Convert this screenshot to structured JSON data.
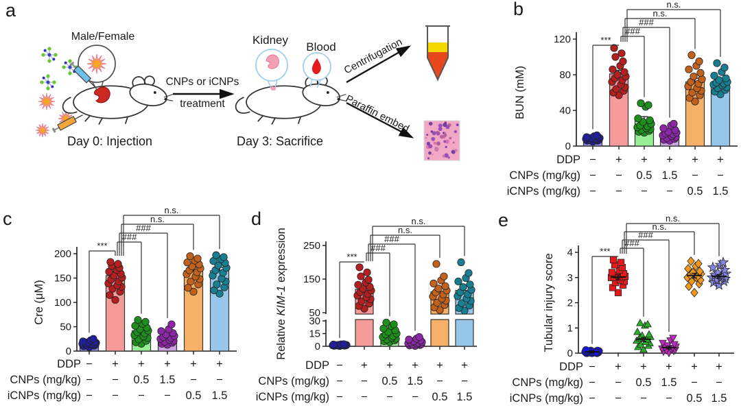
{
  "panel_labels": {
    "a": "a",
    "b": "b",
    "c": "c",
    "d": "d",
    "e": "e"
  },
  "panel_a": {
    "mouse_label": "Male/Female",
    "arrow_line1": "CNPs or iCNPs",
    "arrow_line2": "treatment",
    "day0_label": "Day 0: Injection",
    "kidney_label": "Kidney",
    "blood_label": "Blood",
    "day3_label": "Day 3: Sacrifice",
    "centrifugation_label": "Centrifugation",
    "paraffin_label": "Paraffin embed",
    "kidney_blood_label_color": "#c2512b"
  },
  "chart_data": [
    {
      "id": "b",
      "type": "bar-scatter",
      "ylabel": "BUN (mM)",
      "ylim": [
        0,
        120
      ],
      "yticks": [
        0,
        40,
        80,
        120
      ],
      "x_rows": [
        {
          "label": "DDP",
          "values": [
            "−",
            "+",
            "+",
            "+",
            "+",
            "+"
          ]
        },
        {
          "label": "CNPs (mg/kg)",
          "values": [
            "−",
            "−",
            "0.5",
            "1.5",
            "−",
            "−"
          ]
        },
        {
          "label": "iCNPs (mg/kg)",
          "values": [
            "−",
            "−",
            "−",
            "−",
            "0.5",
            "1.5"
          ]
        }
      ],
      "groups": [
        {
          "bar": 8,
          "err": 1.5,
          "bar_color": "#8b8bdf",
          "dot_color": "#20209a",
          "marker": "circle",
          "dots": [
            5,
            6,
            6,
            7,
            7,
            8,
            8,
            8,
            9,
            9,
            9,
            10,
            10,
            11,
            12
          ]
        },
        {
          "bar": 81,
          "err": 4,
          "bar_color": "#f59c9a",
          "dot_color": "#b3201f",
          "marker": "circle",
          "dots": [
            57,
            60,
            62,
            64,
            66,
            69,
            72,
            74,
            76,
            78,
            80,
            83,
            86,
            90,
            95,
            100,
            104,
            110
          ]
        },
        {
          "bar": 29,
          "err": 4,
          "bar_color": "#97ee97",
          "dot_color": "#1d8f1d",
          "marker": "circle",
          "dots": [
            15,
            16,
            17,
            18,
            19,
            20,
            21,
            22,
            23,
            25,
            27,
            29,
            31,
            44,
            46,
            48
          ]
        },
        {
          "bar": 12,
          "err": 2,
          "bar_color": "#cba3de",
          "dot_color": "#8c28a8",
          "marker": "circle",
          "dots": [
            6,
            7,
            8,
            9,
            10,
            11,
            12,
            13,
            14,
            15,
            16,
            18,
            20,
            23,
            25
          ]
        },
        {
          "bar": 72,
          "err": 4,
          "bar_color": "#f7b067",
          "dot_color": "#c2611c",
          "marker": "circle",
          "dots": [
            50,
            54,
            57,
            60,
            62,
            65,
            67,
            70,
            72,
            75,
            78,
            82,
            86,
            90,
            95,
            102
          ]
        },
        {
          "bar": 70,
          "err": 3,
          "bar_color": "#96c7eb",
          "dot_color": "#187f92",
          "marker": "circle",
          "dots": [
            58,
            61,
            63,
            65,
            66,
            68,
            69,
            70,
            71,
            72,
            74,
            76,
            79,
            83,
            88,
            93
          ]
        }
      ],
      "annotations": [
        {
          "from": 0,
          "to": 1,
          "label": "***"
        },
        {
          "from": 1,
          "to": 2,
          "label": "###"
        },
        {
          "from": 1,
          "to": 3,
          "label": "###"
        },
        {
          "from": 1,
          "to": 4,
          "label": "n.s."
        },
        {
          "from": 1,
          "to": 5,
          "label": "n.s."
        }
      ]
    },
    {
      "id": "c",
      "type": "bar-scatter",
      "ylabel": "Cre (μM)",
      "ylim": [
        0,
        200
      ],
      "yticks": [
        0,
        50,
        100,
        150,
        200
      ],
      "x_rows": [
        {
          "label": "DDP",
          "values": [
            "−",
            "+",
            "+",
            "+",
            "+",
            "+"
          ]
        },
        {
          "label": "CNPs (mg/kg)",
          "values": [
            "−",
            "−",
            "0.5",
            "1.5",
            "−",
            "−"
          ]
        },
        {
          "label": "iCNPs (mg/kg)",
          "values": [
            "−",
            "−",
            "−",
            "−",
            "0.5",
            "1.5"
          ]
        }
      ],
      "groups": [
        {
          "bar": 15,
          "err": 2,
          "bar_color": "#8b8bdf",
          "dot_color": "#20209a",
          "marker": "circle",
          "dots": [
            8,
            10,
            11,
            12,
            13,
            14,
            15,
            15,
            16,
            17,
            18,
            19,
            20,
            22,
            25
          ]
        },
        {
          "bar": 155,
          "err": 8,
          "bar_color": "#f59c9a",
          "dot_color": "#b3201f",
          "marker": "circle",
          "dots": [
            105,
            115,
            122,
            128,
            132,
            135,
            139,
            143,
            147,
            151,
            155,
            159,
            163,
            167,
            171,
            175,
            179,
            183
          ]
        },
        {
          "bar": 42,
          "err": 5,
          "bar_color": "#97ee97",
          "dot_color": "#1d8f1d",
          "marker": "circle",
          "dots": [
            15,
            18,
            21,
            24,
            27,
            30,
            33,
            36,
            39,
            42,
            45,
            48,
            52,
            56,
            60,
            64
          ]
        },
        {
          "bar": 28,
          "err": 4,
          "bar_color": "#cba3de",
          "dot_color": "#8c28a8",
          "marker": "circle",
          "dots": [
            13,
            15,
            17,
            19,
            21,
            23,
            25,
            27,
            29,
            31,
            34,
            37,
            41,
            45,
            55
          ]
        },
        {
          "bar": 165,
          "err": 7,
          "bar_color": "#f7b067",
          "dot_color": "#c2611c",
          "marker": "circle",
          "dots": [
            122,
            130,
            137,
            143,
            148,
            153,
            158,
            162,
            166,
            170,
            174,
            178,
            182,
            186,
            190,
            195
          ]
        },
        {
          "bar": 165,
          "err": 7,
          "bar_color": "#96c7eb",
          "dot_color": "#187f92",
          "marker": "circle",
          "dots": [
            118,
            125,
            131,
            137,
            143,
            149,
            155,
            161,
            166,
            171,
            176,
            181,
            185,
            189,
            193,
            197
          ]
        }
      ],
      "annotations": [
        {
          "from": 0,
          "to": 1,
          "label": "***"
        },
        {
          "from": 1,
          "to": 2,
          "label": "###"
        },
        {
          "from": 1,
          "to": 3,
          "label": "###"
        },
        {
          "from": 1,
          "to": 4,
          "label": "n.s."
        },
        {
          "from": 1,
          "to": 5,
          "label": "n.s."
        }
      ]
    },
    {
      "id": "d",
      "type": "bar-scatter",
      "ylabel_parts": [
        {
          "text": "Relative "
        },
        {
          "text": "KIM-1",
          "italic": true
        },
        {
          "text": " expression"
        }
      ],
      "ylim": [
        0,
        250
      ],
      "axis_break": [
        30,
        50
      ],
      "yticks_lower": [
        0,
        15,
        30
      ],
      "yticks_upper": [
        50,
        150,
        250
      ],
      "x_rows": [
        {
          "label": "DDP",
          "values": [
            "−",
            "+",
            "+",
            "+",
            "+",
            "+"
          ]
        },
        {
          "label": "CNPs (mg/kg)",
          "values": [
            "−",
            "−",
            "0.5",
            "1.5",
            "−",
            "−"
          ]
        },
        {
          "label": "iCNPs (mg/kg)",
          "values": [
            "−",
            "−",
            "−",
            "−",
            "0.5",
            "1.5"
          ]
        }
      ],
      "groups": [
        {
          "bar": 1.2,
          "err": 0.4,
          "bar_color": "#8b8bdf",
          "dot_color": "#20209a",
          "marker": "circle",
          "dots": [
            0.4,
            0.6,
            0.8,
            0.9,
            1,
            1,
            1.1,
            1.2,
            1.3,
            1.5,
            1.6,
            1.8,
            2,
            2.2,
            2.5
          ]
        },
        {
          "bar": 120,
          "err": 15,
          "bar_color": "#f59c9a",
          "dot_color": "#b3201f",
          "marker": "circle",
          "dots": [
            62,
            70,
            77,
            84,
            90,
            96,
            101,
            106,
            111,
            116,
            121,
            127,
            133,
            140,
            148,
            158,
            170,
            185
          ]
        },
        {
          "bar": 15,
          "err": 3,
          "bar_color": "#97ee97",
          "dot_color": "#1d8f1d",
          "marker": "circle",
          "dots": [
            5,
            6,
            7,
            8,
            9,
            10,
            11,
            12,
            14,
            15,
            17,
            19,
            21,
            24,
            26,
            28
          ]
        },
        {
          "bar": 3.5,
          "err": 1,
          "bar_color": "#cba3de",
          "dot_color": "#8c28a8",
          "marker": "circle",
          "dots": [
            0.5,
            1,
            1.5,
            2,
            2.5,
            3,
            3.5,
            4,
            4.5,
            5,
            6,
            7,
            8,
            9,
            11
          ]
        },
        {
          "bar": 112,
          "err": 12,
          "bar_color": "#f7b067",
          "dot_color": "#c2611c",
          "marker": "circle",
          "dots": [
            58,
            66,
            73,
            80,
            86,
            92,
            98,
            104,
            110,
            116,
            122,
            129,
            137,
            146,
            158,
            195
          ]
        },
        {
          "bar": 116,
          "err": 12,
          "bar_color": "#96c7eb",
          "dot_color": "#187f92",
          "marker": "circle",
          "dots": [
            56,
            64,
            71,
            78,
            85,
            92,
            99,
            105,
            111,
            118,
            126,
            134,
            143,
            153,
            168,
            200
          ]
        }
      ],
      "annotations": [
        {
          "from": 0,
          "to": 1,
          "label": "***"
        },
        {
          "from": 1,
          "to": 2,
          "label": "###"
        },
        {
          "from": 1,
          "to": 3,
          "label": "###"
        },
        {
          "from": 1,
          "to": 4,
          "label": "n.s."
        },
        {
          "from": 1,
          "to": 5,
          "label": "n.s."
        }
      ]
    },
    {
      "id": "e",
      "type": "scatter",
      "ylabel": "Tubular injury score",
      "ylim": [
        0,
        4
      ],
      "yticks": [
        0,
        1,
        2,
        3,
        4
      ],
      "x_rows": [
        {
          "label": "DDP",
          "values": [
            "−",
            "+",
            "+",
            "+",
            "+",
            "+"
          ]
        },
        {
          "label": "CNPs (mg/kg)",
          "values": [
            "−",
            "−",
            "0.5",
            "1.5",
            "−",
            "−"
          ]
        },
        {
          "label": "iCNPs (mg/kg)",
          "values": [
            "−",
            "−",
            "−",
            "−",
            "0.5",
            "1.5"
          ]
        }
      ],
      "groups": [
        {
          "mean": 0.05,
          "err": 0.04,
          "dot_color": "#1717dd",
          "marker": "circle",
          "dots": [
            0,
            0,
            0,
            0.02,
            0.03,
            0.05,
            0.05,
            0.06,
            0.08,
            0.08,
            0.1,
            0.1,
            0.12,
            0.05,
            0.03
          ]
        },
        {
          "mean": 3.02,
          "err": 0.09,
          "dot_color": "#e8191c",
          "marker": "square",
          "dots": [
            2.4,
            2.6,
            2.7,
            2.8,
            2.85,
            2.9,
            3,
            3,
            3,
            3.05,
            3.1,
            3.15,
            3.2,
            3.3,
            3.4,
            3.5,
            3.6,
            3.7
          ]
        },
        {
          "mean": 0.55,
          "err": 0.08,
          "dot_color": "#27b227",
          "marker": "triangle-up",
          "dots": [
            0.15,
            0.25,
            0.3,
            0.35,
            0.4,
            0.45,
            0.5,
            0.55,
            0.6,
            0.65,
            0.7,
            0.75,
            0.85,
            1.1,
            1.15,
            1.2
          ]
        },
        {
          "mean": 0.22,
          "err": 0.06,
          "dot_color": "#c428c4",
          "marker": "triangle-down",
          "dots": [
            0,
            0.05,
            0.08,
            0.1,
            0.12,
            0.15,
            0.18,
            0.2,
            0.22,
            0.25,
            0.3,
            0.35,
            0.4,
            0.5,
            0.6
          ]
        },
        {
          "mean": 3.08,
          "err": 0.09,
          "dot_color": "#f0991e",
          "marker": "diamond",
          "dots": [
            2.4,
            2.65,
            2.75,
            2.85,
            2.9,
            3,
            3,
            3.05,
            3.1,
            3.15,
            3.2,
            3.25,
            3.35,
            3.45,
            3.55,
            3.65
          ]
        },
        {
          "mean": 3.05,
          "err": 0.07,
          "dot_color": "#8787e8",
          "marker": "star",
          "dots": [
            2.7,
            2.8,
            2.85,
            2.9,
            2.95,
            3,
            3,
            3.05,
            3.1,
            3.15,
            3.2,
            3.3,
            3.4,
            3.5,
            3.6
          ]
        }
      ],
      "annotations": [
        {
          "from": 0,
          "to": 1,
          "label": "***"
        },
        {
          "from": 1,
          "to": 2,
          "label": "###"
        },
        {
          "from": 1,
          "to": 3,
          "label": "###"
        },
        {
          "from": 1,
          "to": 4,
          "label": "n.s."
        },
        {
          "from": 1,
          "to": 5,
          "label": "n.s."
        }
      ]
    }
  ]
}
